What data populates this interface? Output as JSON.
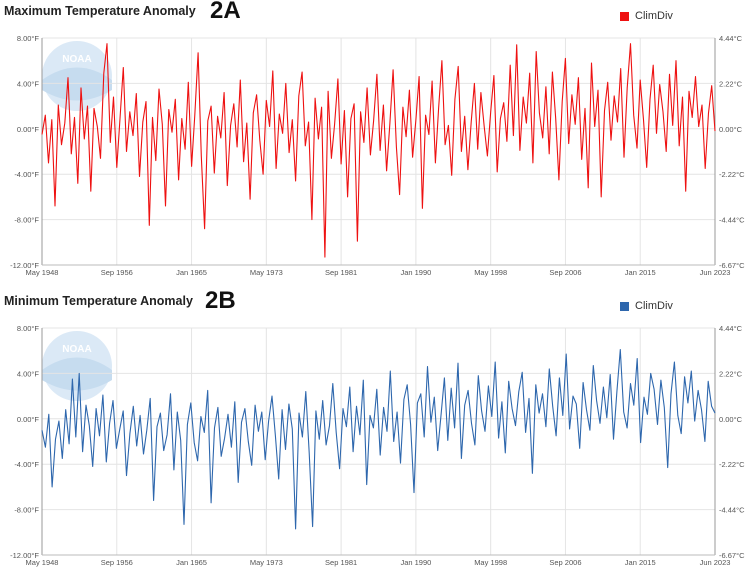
{
  "chart_data": [
    {
      "type": "line",
      "title": "Maximum Temperature Anomaly",
      "panel_tag": "2A",
      "legend": "ClimDiv",
      "legend_position": "top-right",
      "color": "#ee1111",
      "x_tick_labels": [
        "May 1948",
        "Sep 1956",
        "Jan 1965",
        "May 1973",
        "Sep 1981",
        "Jan 1990",
        "May 1998",
        "Sep 2006",
        "Jan 2015",
        "Jun 2023"
      ],
      "y_tick_labels_left": [
        "8.00°F",
        "4.00°F",
        "0.00°F",
        "-4.00°F",
        "-8.00°F",
        "-12.00°F"
      ],
      "y_tick_labels_right": [
        "4.44°C",
        "2.22°C",
        "0.00°C",
        "-2.22°C",
        "-4.44°C",
        "-6.67°C"
      ],
      "ylim": [
        -12,
        8
      ],
      "xlim": [
        "May 1948",
        "Jun 2023"
      ],
      "grid": true,
      "series": [
        {
          "name": "ClimDiv",
          "points_note": "monthly anomaly samples (approx. every ~4 months)",
          "values": [
            -0.5,
            1.2,
            -3.0,
            0.8,
            -6.8,
            2.1,
            -1.4,
            0.5,
            4.5,
            -2.2,
            1.0,
            -4.8,
            3.6,
            -0.9,
            2.0,
            -5.5,
            1.8,
            0.2,
            -2.6,
            4.9,
            7.5,
            -1.2,
            2.8,
            -3.4,
            0.9,
            5.4,
            -2.0,
            1.5,
            -0.6,
            3.1,
            -4.2,
            0.6,
            2.4,
            -8.5,
            1.0,
            -2.8,
            3.5,
            0.4,
            -6.8,
            1.7,
            -0.3,
            2.6,
            -4.5,
            0.9,
            -1.8,
            4.1,
            -3.3,
            1.2,
            6.7,
            -2.4,
            -8.8,
            0.7,
            2.0,
            -3.9,
            1.1,
            -0.8,
            3.2,
            -5.0,
            0.3,
            2.2,
            -1.6,
            4.3,
            -2.9,
            0.5,
            -6.2,
            1.4,
            3.0,
            -1.0,
            -4.0,
            2.5,
            0.2,
            5.1,
            -3.5,
            1.3,
            -0.4,
            4.0,
            -2.1,
            0.8,
            -4.6,
            2.9,
            5.0,
            -1.5,
            0.6,
            -8.0,
            2.7,
            -0.9,
            1.9,
            -11.3,
            3.3,
            -2.6,
            0.4,
            4.4,
            -3.1,
            1.6,
            -6.0,
            0.9,
            2.2,
            -9.9,
            1.5,
            -1.2,
            3.6,
            -2.3,
            0.7,
            4.8,
            -1.9,
            2.1,
            -3.7,
            0.5,
            5.2,
            -1.6,
            -5.8,
            1.9,
            -0.7,
            3.4,
            -2.5,
            0.8,
            4.6,
            -7.0,
            1.2,
            -0.5,
            4.2,
            -3.0,
            1.8,
            6.0,
            -1.4,
            0.3,
            -4.1,
            2.6,
            5.5,
            -2.0,
            1.1,
            -3.6,
            0.6,
            4.0,
            -1.8,
            3.2,
            0.2,
            -2.4,
            1.5,
            4.7,
            -3.8,
            0.9,
            2.3,
            -1.1,
            5.6,
            -0.6,
            7.4,
            -1.9,
            2.8,
            0.5,
            4.9,
            -3.0,
            6.8,
            1.4,
            -0.8,
            3.7,
            -2.2,
            5.0,
            0.9,
            -4.5,
            2.4,
            6.2,
            -1.3,
            3.0,
            0.4,
            4.5,
            -2.7,
            1.8,
            -5.2,
            5.8,
            0.2,
            3.4,
            -6.0,
            1.6,
            4.1,
            -1.0,
            2.9,
            0.6,
            5.3,
            -2.5,
            3.6,
            7.5,
            1.2,
            -1.7,
            4.3,
            0.8,
            -3.4,
            2.6,
            5.6,
            -0.4,
            3.9,
            1.5,
            -2.0,
            4.8,
            0.3,
            6.0,
            -1.5,
            2.8,
            -5.5,
            3.3,
            1.0,
            4.6,
            0.2,
            2.1,
            -3.5,
            1.4,
            3.8,
            -0.2
          ]
        }
      ]
    },
    {
      "type": "line",
      "title": "Minimum Temperature Anomaly",
      "panel_tag": "2B",
      "legend": "ClimDiv",
      "legend_position": "top-right",
      "color": "#2e67ad",
      "x_tick_labels": [
        "May 1948",
        "Sep 1956",
        "Jan 1965",
        "May 1973",
        "Sep 1981",
        "Jan 1990",
        "May 1998",
        "Sep 2006",
        "Jan 2015",
        "Jun 2023"
      ],
      "y_tick_labels_left": [
        "8.00°F",
        "4.00°F",
        "0.00°F",
        "-4.00°F",
        "-8.00°F",
        "-12.00°F"
      ],
      "y_tick_labels_right": [
        "4.44°C",
        "2.22°C",
        "0.00°C",
        "-2.22°C",
        "-4.44°C",
        "-6.67°C"
      ],
      "ylim": [
        -12,
        8
      ],
      "xlim": [
        "May 1948",
        "Jun 2023"
      ],
      "grid": true,
      "series": [
        {
          "name": "ClimDiv",
          "values": [
            -1.0,
            -2.5,
            0.4,
            -6.0,
            -1.8,
            -0.2,
            -3.5,
            0.8,
            -2.2,
            3.5,
            -1.6,
            4.0,
            -2.9,
            1.2,
            -0.6,
            -4.2,
            0.9,
            -1.5,
            2.1,
            -3.8,
            -0.4,
            1.6,
            -2.6,
            -0.9,
            0.7,
            -5.0,
            -1.3,
            1.1,
            -2.4,
            0.3,
            -3.1,
            -1.0,
            1.8,
            -7.2,
            -0.7,
            0.5,
            -2.8,
            -1.4,
            2.2,
            -4.5,
            0.6,
            -1.9,
            -9.3,
            -0.5,
            1.4,
            -2.1,
            -3.7,
            0.2,
            -1.2,
            2.5,
            -7.4,
            -0.8,
            1.0,
            -3.3,
            -1.7,
            0.4,
            -2.5,
            1.5,
            -5.6,
            -0.3,
            0.9,
            -2.0,
            -4.1,
            1.2,
            -1.1,
            0.6,
            -3.6,
            -0.2,
            2.0,
            -1.5,
            -5.3,
            0.8,
            -2.7,
            1.3,
            -0.9,
            -9.7,
            0.5,
            -1.6,
            2.4,
            -3.0,
            -9.5,
            0.7,
            -1.8,
            1.6,
            -2.3,
            -0.6,
            3.1,
            -1.2,
            -4.4,
            0.9,
            -0.7,
            2.8,
            -2.9,
            1.1,
            -1.4,
            3.4,
            -5.8,
            0.3,
            -0.8,
            2.6,
            -3.2,
            1.0,
            -1.1,
            4.2,
            -2.0,
            0.6,
            -3.9,
            1.7,
            3.0,
            -0.5,
            -6.5,
            1.4,
            2.2,
            -1.6,
            4.6,
            -0.3,
            1.9,
            -2.8,
            0.4,
            3.6,
            -1.9,
            2.7,
            -0.8,
            4.9,
            -3.5,
            1.2,
            2.5,
            -0.4,
            -2.3,
            3.8,
            0.7,
            -1.1,
            2.9,
            0.2,
            5.0,
            -1.7,
            1.5,
            -3.0,
            3.3,
            0.9,
            -0.6,
            2.4,
            4.1,
            -1.2,
            1.8,
            -4.8,
            3.0,
            0.5,
            2.2,
            -0.7,
            4.4,
            1.1,
            -1.5,
            3.6,
            0.3,
            5.7,
            -0.9,
            2.0,
            1.3,
            -2.6,
            3.2,
            0.8,
            -1.0,
            4.7,
            1.6,
            -0.4,
            2.8,
            0.1,
            3.9,
            -1.8,
            2.4,
            6.1,
            0.6,
            -0.8,
            3.1,
            1.2,
            5.3,
            -2.1,
            1.9,
            0.4,
            4.0,
            2.6,
            -0.5,
            3.4,
            1.0,
            -4.3,
            2.2,
            5.0,
            0.3,
            -1.3,
            3.7,
            1.4,
            4.2,
            -0.2,
            2.5,
            0.8,
            -2.0,
            3.3,
            1.1,
            0.5
          ]
        }
      ]
    }
  ]
}
